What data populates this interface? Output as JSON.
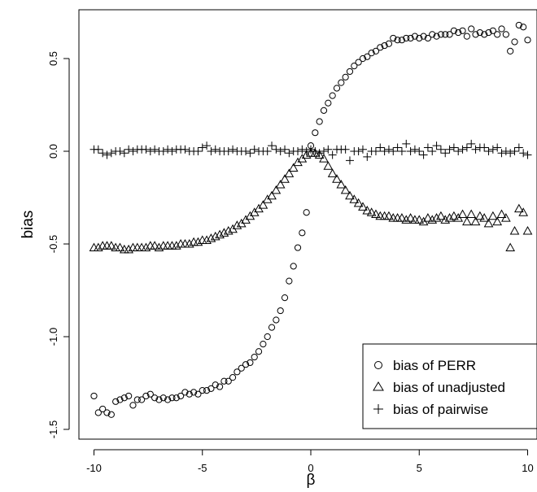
{
  "chart_data": {
    "type": "scatter",
    "xlabel": "β",
    "ylabel": "bias",
    "xlim": [
      -10.5,
      10.5
    ],
    "ylim": [
      -1.52,
      0.76
    ],
    "x_ticks": [
      "-10",
      "-5",
      "0",
      "5",
      "10"
    ],
    "y_ticks": [
      "-1.5",
      "-1.0",
      "-0.5",
      "0.0",
      "0.5"
    ],
    "legend": {
      "position": "bottom-right",
      "entries": [
        "bias of PERR",
        "bias of unadjusted",
        "bias of pairwise"
      ]
    },
    "series": [
      {
        "name": "bias of PERR",
        "marker": "circle",
        "points": [
          [
            -10.0,
            -1.32
          ],
          [
            -9.8,
            -1.41
          ],
          [
            -9.6,
            -1.39
          ],
          [
            -9.4,
            -1.41
          ],
          [
            -9.2,
            -1.42
          ],
          [
            -9.0,
            -1.35
          ],
          [
            -8.8,
            -1.34
          ],
          [
            -8.6,
            -1.33
          ],
          [
            -8.4,
            -1.32
          ],
          [
            -8.2,
            -1.37
          ],
          [
            -8.0,
            -1.34
          ],
          [
            -7.8,
            -1.34
          ],
          [
            -7.6,
            -1.32
          ],
          [
            -7.4,
            -1.31
          ],
          [
            -7.2,
            -1.33
          ],
          [
            -7.0,
            -1.34
          ],
          [
            -6.8,
            -1.33
          ],
          [
            -6.6,
            -1.34
          ],
          [
            -6.4,
            -1.33
          ],
          [
            -6.2,
            -1.33
          ],
          [
            -6.0,
            -1.32
          ],
          [
            -5.8,
            -1.3
          ],
          [
            -5.6,
            -1.31
          ],
          [
            -5.4,
            -1.3
          ],
          [
            -5.2,
            -1.31
          ],
          [
            -5.0,
            -1.29
          ],
          [
            -4.8,
            -1.29
          ],
          [
            -4.6,
            -1.28
          ],
          [
            -4.4,
            -1.26
          ],
          [
            -4.2,
            -1.27
          ],
          [
            -4.0,
            -1.24
          ],
          [
            -3.8,
            -1.24
          ],
          [
            -3.6,
            -1.22
          ],
          [
            -3.4,
            -1.19
          ],
          [
            -3.2,
            -1.17
          ],
          [
            -3.0,
            -1.15
          ],
          [
            -2.8,
            -1.14
          ],
          [
            -2.6,
            -1.11
          ],
          [
            -2.4,
            -1.08
          ],
          [
            -2.2,
            -1.04
          ],
          [
            -2.0,
            -1.0
          ],
          [
            -1.8,
            -0.95
          ],
          [
            -1.6,
            -0.91
          ],
          [
            -1.4,
            -0.86
          ],
          [
            -1.2,
            -0.79
          ],
          [
            -1.0,
            -0.7
          ],
          [
            -0.8,
            -0.62
          ],
          [
            -0.6,
            -0.52
          ],
          [
            -0.4,
            -0.44
          ],
          [
            -0.2,
            -0.33
          ],
          [
            0.0,
            0.03
          ],
          [
            0.2,
            0.1
          ],
          [
            0.4,
            0.16
          ],
          [
            0.6,
            0.22
          ],
          [
            0.8,
            0.26
          ],
          [
            1.0,
            0.3
          ],
          [
            1.2,
            0.34
          ],
          [
            1.4,
            0.37
          ],
          [
            1.6,
            0.4
          ],
          [
            1.8,
            0.43
          ],
          [
            2.0,
            0.46
          ],
          [
            2.2,
            0.48
          ],
          [
            2.4,
            0.5
          ],
          [
            2.6,
            0.51
          ],
          [
            2.8,
            0.53
          ],
          [
            3.0,
            0.54
          ],
          [
            3.2,
            0.56
          ],
          [
            3.4,
            0.57
          ],
          [
            3.6,
            0.58
          ],
          [
            3.8,
            0.61
          ],
          [
            4.0,
            0.6
          ],
          [
            4.2,
            0.6
          ],
          [
            4.4,
            0.61
          ],
          [
            4.6,
            0.61
          ],
          [
            4.8,
            0.62
          ],
          [
            5.0,
            0.61
          ],
          [
            5.2,
            0.62
          ],
          [
            5.4,
            0.61
          ],
          [
            5.6,
            0.63
          ],
          [
            5.8,
            0.62
          ],
          [
            6.0,
            0.63
          ],
          [
            6.2,
            0.63
          ],
          [
            6.4,
            0.63
          ],
          [
            6.6,
            0.65
          ],
          [
            6.8,
            0.64
          ],
          [
            7.0,
            0.65
          ],
          [
            7.2,
            0.62
          ],
          [
            7.4,
            0.66
          ],
          [
            7.6,
            0.63
          ],
          [
            7.8,
            0.64
          ],
          [
            8.0,
            0.63
          ],
          [
            8.2,
            0.64
          ],
          [
            8.4,
            0.65
          ],
          [
            8.6,
            0.63
          ],
          [
            8.8,
            0.66
          ],
          [
            9.0,
            0.63
          ],
          [
            9.2,
            0.54
          ],
          [
            9.4,
            0.59
          ],
          [
            9.6,
            0.68
          ],
          [
            9.8,
            0.67
          ],
          [
            10.0,
            0.6
          ]
        ]
      },
      {
        "name": "bias of unadjusted",
        "marker": "triangle",
        "points": [
          [
            -10.0,
            -0.52
          ],
          [
            -9.8,
            -0.52
          ],
          [
            -9.6,
            -0.51
          ],
          [
            -9.4,
            -0.51
          ],
          [
            -9.2,
            -0.51
          ],
          [
            -9.0,
            -0.52
          ],
          [
            -8.8,
            -0.52
          ],
          [
            -8.6,
            -0.53
          ],
          [
            -8.4,
            -0.53
          ],
          [
            -8.2,
            -0.52
          ],
          [
            -8.0,
            -0.52
          ],
          [
            -7.8,
            -0.52
          ],
          [
            -7.6,
            -0.52
          ],
          [
            -7.4,
            -0.51
          ],
          [
            -7.2,
            -0.51
          ],
          [
            -7.0,
            -0.52
          ],
          [
            -6.8,
            -0.51
          ],
          [
            -6.6,
            -0.51
          ],
          [
            -6.4,
            -0.51
          ],
          [
            -6.2,
            -0.51
          ],
          [
            -6.0,
            -0.5
          ],
          [
            -5.8,
            -0.5
          ],
          [
            -5.6,
            -0.5
          ],
          [
            -5.4,
            -0.49
          ],
          [
            -5.2,
            -0.49
          ],
          [
            -5.0,
            -0.48
          ],
          [
            -4.8,
            -0.48
          ],
          [
            -4.6,
            -0.47
          ],
          [
            -4.4,
            -0.46
          ],
          [
            -4.2,
            -0.45
          ],
          [
            -4.0,
            -0.44
          ],
          [
            -3.8,
            -0.43
          ],
          [
            -3.6,
            -0.42
          ],
          [
            -3.4,
            -0.4
          ],
          [
            -3.2,
            -0.39
          ],
          [
            -3.0,
            -0.37
          ],
          [
            -2.8,
            -0.35
          ],
          [
            -2.6,
            -0.33
          ],
          [
            -2.4,
            -0.31
          ],
          [
            -2.2,
            -0.29
          ],
          [
            -2.0,
            -0.26
          ],
          [
            -1.8,
            -0.24
          ],
          [
            -1.6,
            -0.21
          ],
          [
            -1.4,
            -0.18
          ],
          [
            -1.2,
            -0.15
          ],
          [
            -1.0,
            -0.12
          ],
          [
            -0.8,
            -0.09
          ],
          [
            -0.6,
            -0.06
          ],
          [
            -0.4,
            -0.04
          ],
          [
            -0.2,
            -0.02
          ],
          [
            0.0,
            -0.01
          ],
          [
            0.2,
            -0.01
          ],
          [
            0.4,
            -0.02
          ],
          [
            0.6,
            -0.04
          ],
          [
            0.8,
            -0.08
          ],
          [
            1.0,
            -0.12
          ],
          [
            1.2,
            -0.15
          ],
          [
            1.4,
            -0.18
          ],
          [
            1.6,
            -0.21
          ],
          [
            1.8,
            -0.24
          ],
          [
            2.0,
            -0.26
          ],
          [
            2.2,
            -0.28
          ],
          [
            2.4,
            -0.3
          ],
          [
            2.6,
            -0.32
          ],
          [
            2.8,
            -0.33
          ],
          [
            3.0,
            -0.34
          ],
          [
            3.2,
            -0.35
          ],
          [
            3.4,
            -0.35
          ],
          [
            3.6,
            -0.35
          ],
          [
            3.8,
            -0.36
          ],
          [
            4.0,
            -0.36
          ],
          [
            4.2,
            -0.36
          ],
          [
            4.4,
            -0.37
          ],
          [
            4.6,
            -0.36
          ],
          [
            4.8,
            -0.37
          ],
          [
            5.0,
            -0.37
          ],
          [
            5.2,
            -0.38
          ],
          [
            5.4,
            -0.36
          ],
          [
            5.6,
            -0.37
          ],
          [
            5.8,
            -0.36
          ],
          [
            6.0,
            -0.35
          ],
          [
            6.2,
            -0.37
          ],
          [
            6.4,
            -0.36
          ],
          [
            6.6,
            -0.35
          ],
          [
            6.8,
            -0.36
          ],
          [
            7.0,
            -0.34
          ],
          [
            7.2,
            -0.38
          ],
          [
            7.4,
            -0.34
          ],
          [
            7.6,
            -0.38
          ],
          [
            7.8,
            -0.35
          ],
          [
            8.0,
            -0.36
          ],
          [
            8.2,
            -0.39
          ],
          [
            8.4,
            -0.35
          ],
          [
            8.6,
            -0.38
          ],
          [
            8.8,
            -0.34
          ],
          [
            9.0,
            -0.36
          ],
          [
            9.2,
            -0.52
          ],
          [
            9.4,
            -0.43
          ],
          [
            9.6,
            -0.31
          ],
          [
            9.8,
            -0.33
          ],
          [
            10.0,
            -0.43
          ]
        ]
      },
      {
        "name": "bias of pairwise",
        "marker": "plus",
        "points": [
          [
            -10.0,
            0.01
          ],
          [
            -9.8,
            0.01
          ],
          [
            -9.6,
            -0.01
          ],
          [
            -9.4,
            -0.02
          ],
          [
            -9.2,
            -0.01
          ],
          [
            -9.0,
            0.0
          ],
          [
            -8.8,
            0.0
          ],
          [
            -8.6,
            -0.01
          ],
          [
            -8.4,
            0.01
          ],
          [
            -8.2,
            0.0
          ],
          [
            -8.0,
            0.01
          ],
          [
            -7.8,
            0.01
          ],
          [
            -7.6,
            0.01
          ],
          [
            -7.4,
            0.0
          ],
          [
            -7.2,
            0.01
          ],
          [
            -7.0,
            0.0
          ],
          [
            -6.8,
            0.0
          ],
          [
            -6.6,
            0.01
          ],
          [
            -6.4,
            0.0
          ],
          [
            -6.2,
            0.01
          ],
          [
            -6.0,
            0.01
          ],
          [
            -5.8,
            0.01
          ],
          [
            -5.6,
            0.0
          ],
          [
            -5.4,
            0.0
          ],
          [
            -5.2,
            0.0
          ],
          [
            -5.0,
            0.02
          ],
          [
            -4.8,
            0.03
          ],
          [
            -4.6,
            0.0
          ],
          [
            -4.4,
            0.01
          ],
          [
            -4.2,
            0.0
          ],
          [
            -4.0,
            0.0
          ],
          [
            -3.8,
            0.0
          ],
          [
            -3.6,
            0.01
          ],
          [
            -3.4,
            0.0
          ],
          [
            -3.2,
            0.0
          ],
          [
            -3.0,
            0.0
          ],
          [
            -2.8,
            -0.01
          ],
          [
            -2.6,
            0.01
          ],
          [
            -2.4,
            0.0
          ],
          [
            -2.2,
            0.0
          ],
          [
            -2.0,
            0.0
          ],
          [
            -1.8,
            0.03
          ],
          [
            -1.6,
            0.01
          ],
          [
            -1.4,
            0.0
          ],
          [
            -1.2,
            0.01
          ],
          [
            -1.0,
            -0.01
          ],
          [
            -0.8,
            0.0
          ],
          [
            -0.6,
            0.0
          ],
          [
            -0.4,
            0.01
          ],
          [
            -0.2,
            0.0
          ],
          [
            0.0,
            0.01
          ],
          [
            0.2,
            0.0
          ],
          [
            0.4,
            -0.01
          ],
          [
            0.6,
            0.0
          ],
          [
            0.8,
            0.01
          ],
          [
            1.0,
            -0.02
          ],
          [
            1.2,
            0.01
          ],
          [
            1.4,
            0.01
          ],
          [
            1.6,
            0.01
          ],
          [
            1.8,
            -0.05
          ],
          [
            2.0,
            0.0
          ],
          [
            2.2,
            0.0
          ],
          [
            2.4,
            0.01
          ],
          [
            2.6,
            -0.03
          ],
          [
            2.8,
            0.0
          ],
          [
            3.0,
            0.0
          ],
          [
            3.2,
            0.02
          ],
          [
            3.4,
            0.0
          ],
          [
            3.6,
            0.01
          ],
          [
            3.8,
            0.0
          ],
          [
            4.0,
            0.02
          ],
          [
            4.2,
            0.0
          ],
          [
            4.4,
            0.04
          ],
          [
            4.6,
            0.0
          ],
          [
            4.8,
            0.01
          ],
          [
            5.0,
            0.0
          ],
          [
            5.2,
            -0.02
          ],
          [
            5.4,
            0.02
          ],
          [
            5.6,
            0.0
          ],
          [
            5.8,
            0.03
          ],
          [
            6.0,
            0.01
          ],
          [
            6.2,
            -0.01
          ],
          [
            6.4,
            0.01
          ],
          [
            6.6,
            0.02
          ],
          [
            6.8,
            0.0
          ],
          [
            7.0,
            0.01
          ],
          [
            7.2,
            0.02
          ],
          [
            7.4,
            0.04
          ],
          [
            7.6,
            0.01
          ],
          [
            7.8,
            0.02
          ],
          [
            8.0,
            0.02
          ],
          [
            8.2,
            0.0
          ],
          [
            8.4,
            0.01
          ],
          [
            8.6,
            0.02
          ],
          [
            8.8,
            -0.01
          ],
          [
            9.0,
            0.0
          ],
          [
            9.2,
            -0.01
          ],
          [
            9.4,
            0.0
          ],
          [
            9.6,
            0.02
          ],
          [
            9.8,
            -0.01
          ],
          [
            10.0,
            -0.02
          ]
        ]
      }
    ]
  }
}
